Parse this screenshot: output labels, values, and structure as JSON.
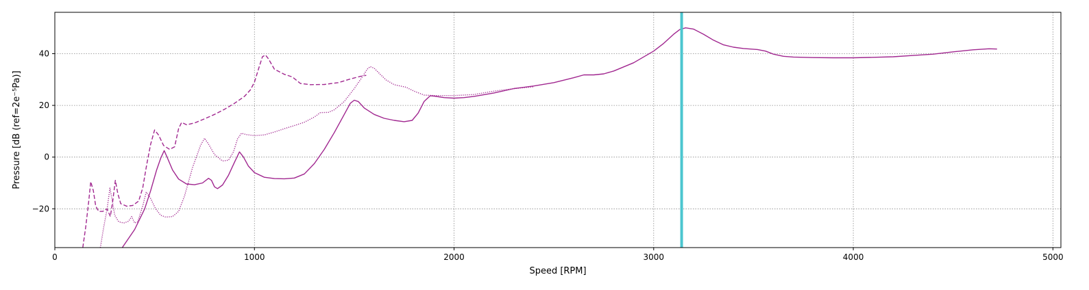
{
  "chart_data": {
    "type": "line",
    "xlabel": "Speed [RPM]",
    "ylabel": "Pressure [dB (ref=2e⁻⁵Pa)]",
    "xlim": [
      0,
      5040
    ],
    "ylim": [
      -35,
      56
    ],
    "xticks": [
      0,
      1000,
      2000,
      3000,
      4000,
      5000
    ],
    "yticks": [
      -20,
      0,
      20,
      40
    ],
    "grid": true,
    "vertical_marker": {
      "x": 3140,
      "color": "#4cc6cf"
    },
    "series_color": "#a0268f",
    "series": [
      {
        "style": "solid",
        "points": [
          [
            338,
            -35
          ],
          [
            400,
            -28
          ],
          [
            450,
            -20
          ],
          [
            480,
            -13
          ],
          [
            510,
            -5
          ],
          [
            530,
            -0.5
          ],
          [
            548,
            2.5
          ],
          [
            565,
            -0.5
          ],
          [
            590,
            -5
          ],
          [
            620,
            -8.5
          ],
          [
            660,
            -10.4
          ],
          [
            700,
            -10.7
          ],
          [
            740,
            -10
          ],
          [
            770,
            -8.2
          ],
          [
            785,
            -9
          ],
          [
            800,
            -11.5
          ],
          [
            815,
            -12.2
          ],
          [
            840,
            -10.8
          ],
          [
            870,
            -7
          ],
          [
            900,
            -2
          ],
          [
            925,
            2
          ],
          [
            945,
            0
          ],
          [
            970,
            -3.5
          ],
          [
            1000,
            -6
          ],
          [
            1050,
            -7.8
          ],
          [
            1100,
            -8.3
          ],
          [
            1150,
            -8.4
          ],
          [
            1200,
            -8.1
          ],
          [
            1250,
            -6.5
          ],
          [
            1300,
            -2.5
          ],
          [
            1350,
            3
          ],
          [
            1400,
            9.5
          ],
          [
            1450,
            16.5
          ],
          [
            1480,
            20.8
          ],
          [
            1500,
            22
          ],
          [
            1520,
            21.5
          ],
          [
            1550,
            19
          ],
          [
            1600,
            16.5
          ],
          [
            1650,
            15
          ],
          [
            1700,
            14.2
          ],
          [
            1750,
            13.7
          ],
          [
            1790,
            14.2
          ],
          [
            1820,
            17
          ],
          [
            1850,
            21.5
          ],
          [
            1880,
            23.7
          ],
          [
            1900,
            23.6
          ],
          [
            1950,
            23
          ],
          [
            2000,
            22.8
          ],
          [
            2050,
            23
          ],
          [
            2100,
            23.5
          ],
          [
            2200,
            24.8
          ],
          [
            2300,
            26.5
          ],
          [
            2400,
            27.5
          ],
          [
            2500,
            28.8
          ],
          [
            2600,
            30.7
          ],
          [
            2650,
            31.8
          ],
          [
            2700,
            31.8
          ],
          [
            2750,
            32.2
          ],
          [
            2800,
            33.3
          ],
          [
            2900,
            36.5
          ],
          [
            3000,
            41
          ],
          [
            3050,
            44
          ],
          [
            3100,
            47.5
          ],
          [
            3130,
            49.3
          ],
          [
            3160,
            50
          ],
          [
            3200,
            49.5
          ],
          [
            3250,
            47.5
          ],
          [
            3300,
            45.2
          ],
          [
            3350,
            43.4
          ],
          [
            3400,
            42.5
          ],
          [
            3450,
            42
          ],
          [
            3520,
            41.6
          ],
          [
            3560,
            41
          ],
          [
            3600,
            39.8
          ],
          [
            3650,
            39
          ],
          [
            3700,
            38.7
          ],
          [
            3800,
            38.5
          ],
          [
            3900,
            38.4
          ],
          [
            4000,
            38.4
          ],
          [
            4100,
            38.6
          ],
          [
            4200,
            38.8
          ],
          [
            4300,
            39.3
          ],
          [
            4400,
            39.8
          ],
          [
            4500,
            40.7
          ],
          [
            4600,
            41.5
          ],
          [
            4680,
            41.9
          ],
          [
            4720,
            41.8
          ]
        ]
      },
      {
        "style": "dotted",
        "points": [
          [
            228,
            -35
          ],
          [
            245,
            -27
          ],
          [
            262,
            -20
          ],
          [
            276,
            -12
          ],
          [
            288,
            -17
          ],
          [
            300,
            -22.5
          ],
          [
            320,
            -25
          ],
          [
            345,
            -25.5
          ],
          [
            370,
            -24.8
          ],
          [
            385,
            -23
          ],
          [
            400,
            -25.5
          ],
          [
            415,
            -25
          ],
          [
            440,
            -19
          ],
          [
            458,
            -13.5
          ],
          [
            480,
            -16
          ],
          [
            505,
            -20
          ],
          [
            530,
            -22.5
          ],
          [
            555,
            -23.2
          ],
          [
            590,
            -23
          ],
          [
            620,
            -21
          ],
          [
            650,
            -15
          ],
          [
            690,
            -4
          ],
          [
            730,
            4.5
          ],
          [
            750,
            7.3
          ],
          [
            770,
            5
          ],
          [
            800,
            1
          ],
          [
            840,
            -1.5
          ],
          [
            870,
            -1.2
          ],
          [
            895,
            2
          ],
          [
            915,
            7
          ],
          [
            935,
            9.2
          ],
          [
            960,
            8.7
          ],
          [
            1000,
            8.3
          ],
          [
            1050,
            8.6
          ],
          [
            1100,
            9.7
          ],
          [
            1150,
            11
          ],
          [
            1200,
            12.2
          ],
          [
            1250,
            13.5
          ],
          [
            1300,
            15.5
          ],
          [
            1330,
            17.2
          ],
          [
            1370,
            17.3
          ],
          [
            1400,
            18.3
          ],
          [
            1450,
            21.5
          ],
          [
            1500,
            26.5
          ],
          [
            1540,
            31
          ],
          [
            1565,
            34
          ],
          [
            1580,
            35
          ],
          [
            1600,
            34.4
          ],
          [
            1630,
            32
          ],
          [
            1660,
            29.8
          ],
          [
            1700,
            28
          ],
          [
            1760,
            27
          ],
          [
            1800,
            25.5
          ],
          [
            1850,
            24
          ],
          [
            1900,
            23.8
          ],
          [
            2000,
            23.8
          ],
          [
            2100,
            24.2
          ],
          [
            2200,
            25.5
          ],
          [
            2300,
            26.5
          ],
          [
            2400,
            27.2
          ]
        ]
      },
      {
        "style": "dashed",
        "points": [
          [
            140,
            -35
          ],
          [
            155,
            -27
          ],
          [
            170,
            -17
          ],
          [
            180,
            -9.5
          ],
          [
            193,
            -13
          ],
          [
            205,
            -19
          ],
          [
            220,
            -21
          ],
          [
            240,
            -21
          ],
          [
            262,
            -20
          ],
          [
            278,
            -23
          ],
          [
            290,
            -17
          ],
          [
            303,
            -9
          ],
          [
            315,
            -14
          ],
          [
            330,
            -18
          ],
          [
            360,
            -19
          ],
          [
            390,
            -18.7
          ],
          [
            420,
            -17
          ],
          [
            440,
            -12
          ],
          [
            460,
            -3
          ],
          [
            480,
            5
          ],
          [
            500,
            10.5
          ],
          [
            520,
            8.5
          ],
          [
            545,
            4.5
          ],
          [
            575,
            3
          ],
          [
            600,
            4
          ],
          [
            620,
            11
          ],
          [
            635,
            13.4
          ],
          [
            660,
            12.5
          ],
          [
            700,
            13.2
          ],
          [
            750,
            14.8
          ],
          [
            800,
            16.5
          ],
          [
            850,
            18.5
          ],
          [
            900,
            20.8
          ],
          [
            950,
            23.5
          ],
          [
            980,
            26
          ],
          [
            1000,
            29
          ],
          [
            1020,
            34
          ],
          [
            1040,
            38.8
          ],
          [
            1055,
            39.5
          ],
          [
            1070,
            38
          ],
          [
            1100,
            34
          ],
          [
            1150,
            32
          ],
          [
            1190,
            31
          ],
          [
            1230,
            28.5
          ],
          [
            1280,
            28
          ],
          [
            1350,
            28.1
          ],
          [
            1420,
            28.8
          ],
          [
            1480,
            30.2
          ],
          [
            1530,
            31.2
          ],
          [
            1560,
            31.6
          ]
        ]
      }
    ]
  }
}
